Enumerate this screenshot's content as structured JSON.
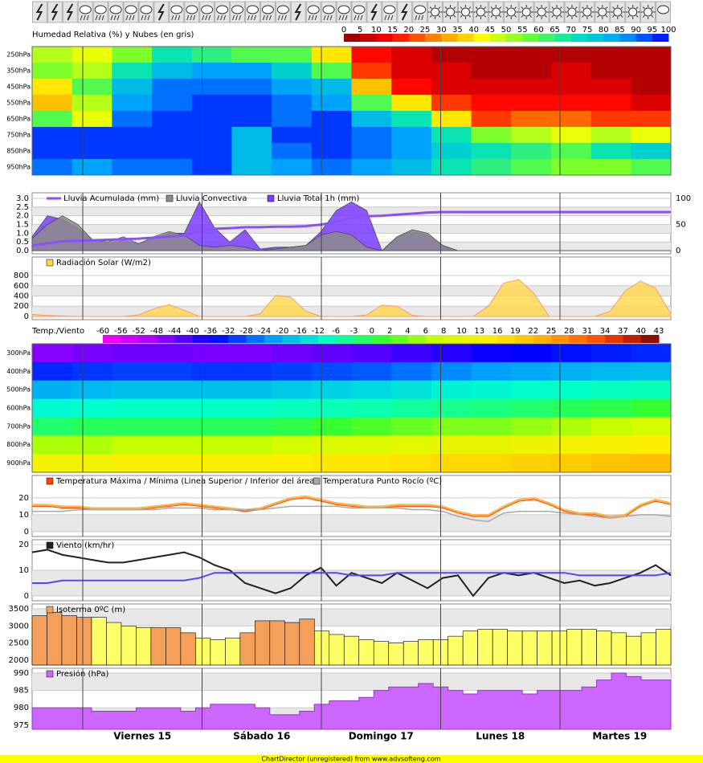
{
  "days": [
    "Viernes 15",
    "Sábado 16",
    "Domingo 17",
    "Lunes 18",
    "Martes 19"
  ],
  "footer": "ChartDirector (unregistered) from www.advsofteng.com",
  "chart_data": [
    {
      "type": "heatmap",
      "title": "Humedad Relativa (%) y Nubes (en gris)",
      "levels": [
        "250hPa",
        "350hPa",
        "450hPa",
        "550hPa",
        "650hPa",
        "750hPa",
        "850hPa",
        "950hPa"
      ],
      "scale_ticks": [
        0,
        5,
        10,
        15,
        20,
        25,
        30,
        35,
        40,
        45,
        50,
        55,
        60,
        65,
        70,
        75,
        80,
        85,
        90,
        95,
        100
      ],
      "colors": [
        "#8b0000",
        "#ff0000",
        "#ff8c00",
        "#ffff00",
        "#66ff33",
        "#00e0c0",
        "#00a0ff",
        "#0000ff"
      ],
      "values": [
        [
          50,
          45,
          55,
          70,
          65,
          60,
          60,
          40,
          15,
          10,
          5,
          5,
          5,
          5,
          5,
          5
        ],
        [
          55,
          50,
          70,
          80,
          85,
          85,
          75,
          60,
          20,
          10,
          10,
          5,
          5,
          10,
          5,
          5
        ],
        [
          40,
          60,
          80,
          90,
          90,
          90,
          85,
          80,
          35,
          15,
          10,
          10,
          10,
          10,
          10,
          5
        ],
        [
          35,
          50,
          85,
          90,
          95,
          95,
          90,
          85,
          60,
          40,
          20,
          15,
          15,
          15,
          15,
          10
        ],
        [
          60,
          45,
          90,
          95,
          95,
          95,
          90,
          95,
          80,
          70,
          40,
          20,
          25,
          25,
          20,
          20
        ],
        [
          95,
          95,
          95,
          95,
          95,
          80,
          95,
          95,
          90,
          85,
          70,
          55,
          50,
          45,
          50,
          45
        ],
        [
          95,
          95,
          95,
          95,
          95,
          80,
          90,
          95,
          90,
          85,
          75,
          70,
          65,
          60,
          70,
          75
        ],
        [
          90,
          85,
          90,
          90,
          95,
          80,
          85,
          90,
          85,
          80,
          70,
          65,
          60,
          55,
          55,
          60
        ]
      ]
    },
    {
      "type": "combo",
      "ylim": [
        -0.18,
        3.32
      ],
      "yticks": [
        {
          "value": 0,
          "label": "0.0"
        },
        {
          "value": 0.5,
          "label": "0.5"
        },
        {
          "value": 1,
          "label": "1.0"
        },
        {
          "value": 1.5,
          "label": "1.5"
        },
        {
          "value": 2,
          "label": "2.0"
        },
        {
          "value": 2.5,
          "label": "2.5"
        },
        {
          "value": 3,
          "label": "3.0"
        }
      ],
      "y2lim": [
        -6,
        111
      ],
      "y2ticks": [
        0,
        50,
        100
      ],
      "series": [
        {
          "name": "Lluvia Acumulada (mm)",
          "kind": "line",
          "axis": "y2",
          "color": "#8a4fff",
          "values": [
            10,
            14,
            18,
            19,
            20,
            21,
            22,
            23,
            25,
            27,
            29,
            38,
            42,
            43,
            45,
            45,
            46,
            46,
            47,
            50,
            55,
            62,
            66,
            67,
            69,
            71,
            73,
            74,
            74,
            74,
            74,
            74,
            74,
            74,
            74,
            74,
            74,
            74,
            74,
            74,
            74,
            74,
            74
          ]
        },
        {
          "name": "Lluvia Convectiva",
          "kind": "area",
          "color": "#8c8c8c",
          "values": [
            0.7,
            1.5,
            2.0,
            1.5,
            0.6,
            0.5,
            0.8,
            0.4,
            0.8,
            1.1,
            0.9,
            0.3,
            0.2,
            0.3,
            0.2,
            0,
            0.1,
            0.2,
            0.3,
            0.9,
            1.1,
            0.9,
            0.2,
            0,
            0.8,
            1.2,
            1.0,
            0.3,
            0,
            0,
            0,
            0,
            0,
            0,
            0,
            0,
            0,
            0,
            0,
            0,
            0,
            0,
            0
          ]
        },
        {
          "name": "Lluvia Total 1h (mm)",
          "kind": "area",
          "color": "#7a3cff",
          "values": [
            0.8,
            2.0,
            1.8,
            1.3,
            0.6,
            0.4,
            0.6,
            0.4,
            0.7,
            1.0,
            1.0,
            2.8,
            1.3,
            0.5,
            1.2,
            0.1,
            0.2,
            0.2,
            0.3,
            1.1,
            2.3,
            2.8,
            2.3,
            0,
            0.8,
            1.1,
            0.9,
            0.3,
            0,
            0,
            0,
            0,
            0,
            0,
            0,
            0,
            0,
            0,
            0,
            0,
            0,
            0,
            0
          ]
        }
      ]
    },
    {
      "type": "area",
      "ylim": [
        -63,
        1161
      ],
      "yticks": [
        0,
        200,
        400,
        600,
        800
      ],
      "series": [
        {
          "name": "Radiación Solar (W/m2)",
          "color": "#ffd84a",
          "values": [
            40,
            20,
            10,
            0,
            0,
            0,
            0,
            30,
            150,
            230,
            120,
            0,
            0,
            0,
            0,
            50,
            410,
            380,
            100,
            0,
            0,
            0,
            30,
            220,
            200,
            20,
            0,
            0,
            0,
            0,
            200,
            650,
            720,
            450,
            0,
            0,
            0,
            0,
            100,
            500,
            690,
            550,
            50
          ]
        }
      ]
    },
    {
      "type": "heatmap",
      "title": "Temp./Viento",
      "levels": [
        "300hPa",
        "400hPa",
        "500hPa",
        "600hPa",
        "700hPa",
        "800hPa",
        "900hPa"
      ],
      "scale_ticks": [
        -60,
        -56,
        -52,
        -48,
        -44,
        -40,
        -36,
        -32,
        -28,
        -24,
        -20,
        -16,
        -12,
        -6,
        -3,
        0,
        2,
        4,
        6,
        8,
        10,
        13,
        16,
        19,
        22,
        25,
        28,
        31,
        34,
        37,
        40,
        43
      ],
      "colors": [
        "#ff00ff",
        "#9900ff",
        "#0000ff",
        "#0099ff",
        "#00ffcc",
        "#33ff33",
        "#ccff00",
        "#ffee00",
        "#ffaa00",
        "#ff4400",
        "#800000"
      ],
      "values": [
        [
          -46,
          -45,
          -44,
          -44,
          -45,
          -45,
          -44,
          -43,
          -42,
          -40,
          -38,
          -36,
          -35,
          -34,
          -33,
          -32
        ],
        [
          -32,
          -31,
          -30,
          -30,
          -31,
          -31,
          -30,
          -29,
          -28,
          -26,
          -24,
          -22,
          -21,
          -20,
          -19,
          -18
        ],
        [
          -20,
          -19,
          -18,
          -18,
          -18,
          -18,
          -17,
          -16,
          -15,
          -14,
          -12,
          -11,
          -10,
          -9,
          -8,
          -7
        ],
        [
          -11,
          -10,
          -9,
          -9,
          -9,
          -9,
          -8,
          -7,
          -6,
          -5,
          -4,
          -3,
          -2,
          -1,
          0,
          1
        ],
        [
          -2,
          -1,
          -1,
          -1,
          -1,
          -1,
          0,
          1,
          2,
          3,
          4,
          4,
          5,
          6,
          7,
          8
        ],
        [
          6,
          6,
          7,
          7,
          7,
          7,
          8,
          9,
          9,
          10,
          11,
          11,
          12,
          13,
          14,
          15
        ],
        [
          13,
          13,
          14,
          14,
          14,
          14,
          15,
          16,
          16,
          17,
          18,
          18,
          19,
          20,
          21,
          22
        ]
      ]
    },
    {
      "type": "band",
      "ylim": [
        -2.9,
        33.3
      ],
      "yticks": [
        0,
        10,
        20
      ],
      "series": [
        {
          "name": "Temperatura Máxima / Mínima (Linea Superior / Inferior del área)",
          "color": "#ff4400",
          "fill": "#ffb347",
          "values": [
            16,
            16,
            15,
            15,
            14,
            14,
            14,
            14,
            15,
            16,
            17,
            16,
            15,
            14,
            13,
            14,
            17,
            20,
            21,
            19,
            17,
            16,
            15,
            15,
            16,
            16,
            16,
            15,
            12,
            10,
            10,
            15,
            19,
            20,
            17,
            13,
            11,
            11,
            9,
            10,
            16,
            19,
            17
          ],
          "lows": [
            15,
            15,
            14,
            14,
            13,
            13,
            13,
            13,
            14,
            15,
            16,
            15,
            14,
            13,
            12,
            13,
            16,
            19,
            20,
            18,
            16,
            15,
            14,
            14,
            15,
            15,
            15,
            14,
            11,
            9,
            9,
            14,
            18,
            19,
            16,
            12,
            10,
            10,
            8,
            9,
            15,
            18,
            16
          ]
        },
        {
          "name": "Temperatura Punto Rocío (ºC)",
          "color": "#a8a8a8",
          "values": [
            12,
            12,
            12,
            13,
            13,
            13,
            13,
            13,
            13,
            14,
            14,
            14,
            13,
            13,
            13,
            13,
            14,
            15,
            15,
            15,
            15,
            14,
            14,
            14,
            14,
            13,
            13,
            12,
            9,
            7,
            6,
            11,
            12,
            12,
            12,
            11,
            10,
            9,
            8,
            9,
            10,
            10,
            9
          ]
        }
      ]
    },
    {
      "type": "line",
      "ylim": [
        -1.9,
        21.9
      ],
      "yticks": [
        0,
        10,
        20
      ],
      "series": [
        {
          "name": "Viento (km/hr)",
          "color": "#222222",
          "values": [
            17,
            18,
            16,
            15,
            14,
            13,
            13,
            14,
            15,
            16,
            17,
            15,
            12,
            10,
            5,
            3,
            1,
            3,
            8,
            11,
            4,
            9,
            7,
            5,
            9,
            6,
            3,
            7,
            8,
            0,
            7,
            9,
            8,
            9,
            7,
            5,
            6,
            4,
            5,
            7,
            9,
            12,
            8
          ]
        },
        {
          "color": "#4a4aff",
          "values": [
            5,
            5,
            6,
            6,
            6,
            6,
            6,
            6,
            6,
            6,
            6,
            7,
            9,
            9,
            9,
            9,
            9,
            9,
            9,
            9,
            9,
            8,
            8,
            8,
            9,
            9,
            9,
            9,
            9,
            9,
            9,
            9,
            9,
            9,
            9,
            9,
            8,
            8,
            8,
            8,
            8,
            8,
            9
          ]
        }
      ]
    },
    {
      "type": "bar",
      "ylim": [
        1859,
        3641
      ],
      "yticks": [
        2000,
        2500,
        3000,
        3500
      ],
      "series": [
        {
          "name": "Isoterma 0ºC (m)",
          "color": "#f5a05a",
          "values": [
            3300,
            3400,
            3300,
            3250,
            3250,
            3100,
            3000,
            2950,
            2950,
            2950,
            2800,
            2650,
            2600,
            2650,
            2800,
            3150,
            3150,
            3100,
            3200,
            2850,
            2750,
            2700,
            2600,
            2550,
            2500,
            2550,
            2600,
            2600,
            2700,
            2850,
            2900,
            2900,
            2850,
            2850,
            2850,
            2850,
            2900,
            2900,
            2850,
            2800,
            2700,
            2800,
            2900
          ],
          "colors": [
            "#f5a05a",
            "#f5a05a",
            "#f5a05a",
            "#f5a05a",
            "#ffff66",
            "#ffff66",
            "#ffff66",
            "#ffff66",
            "#f5a05a",
            "#f5a05a",
            "#f5a05a",
            "#ffff66",
            "#ffff66",
            "#ffff66",
            "#f5a05a",
            "#f5a05a",
            "#f5a05a",
            "#f5a05a",
            "#f5a05a",
            "#ffff66",
            "#ffff66",
            "#ffff66",
            "#ffff66",
            "#ffff66",
            "#ffff66",
            "#ffff66",
            "#ffff66",
            "#ffff66",
            "#ffff66",
            "#ffff66",
            "#ffff66",
            "#ffff66",
            "#ffff66",
            "#ffff66",
            "#ffff66",
            "#ffff66",
            "#ffff66",
            "#ffff66",
            "#ffff66",
            "#ffff66",
            "#ffff66",
            "#ffff66",
            "#ffff66"
          ]
        }
      ]
    },
    {
      "type": "step",
      "ylim": [
        973.8,
        991.4
      ],
      "yticks": [
        975,
        980,
        985,
        990
      ],
      "series": [
        {
          "name": "Presión (hPa)",
          "color": "#cc66ff",
          "values": [
            980,
            980,
            980,
            980,
            979,
            979,
            979,
            980,
            980,
            980,
            979,
            980,
            981,
            981,
            981,
            980,
            978,
            978,
            979,
            981,
            982,
            982,
            983,
            985,
            986,
            986,
            987,
            986,
            985,
            984,
            985,
            985,
            985,
            984,
            985,
            985,
            985,
            986,
            988,
            990,
            989,
            988,
            988
          ]
        }
      ]
    }
  ]
}
